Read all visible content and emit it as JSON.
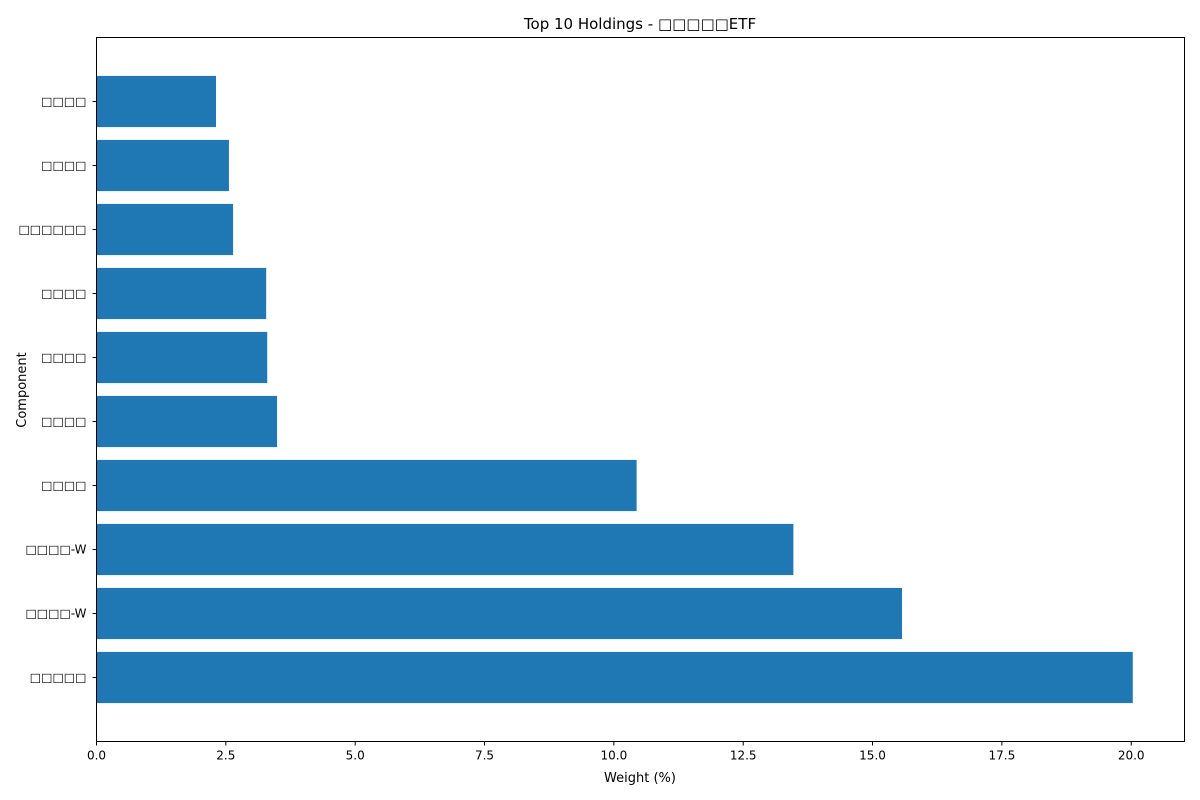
{
  "chart_data": {
    "type": "bar",
    "orientation": "horizontal",
    "title": "Top 10 Holdings - □□□□□ETF",
    "xlabel": "Weight (%)",
    "ylabel": "Component",
    "categories": [
      "□□□□□",
      "□□□□-W",
      "□□□□-W",
      "□□□□",
      "□□□□",
      "□□□□",
      "□□□□",
      "□□□□□□",
      "□□□□",
      "□□□□"
    ],
    "values": [
      20.03,
      15.57,
      13.47,
      10.44,
      3.49,
      3.3,
      3.28,
      2.64,
      2.56,
      2.31
    ],
    "xlim": [
      0,
      21.03
    ],
    "xticks": [
      "0.0",
      "2.5",
      "5.0",
      "7.5",
      "10.0",
      "12.5",
      "15.0",
      "17.5",
      "20.0"
    ],
    "grid": false,
    "legend": "none",
    "bar_color": "#1f77b4"
  }
}
